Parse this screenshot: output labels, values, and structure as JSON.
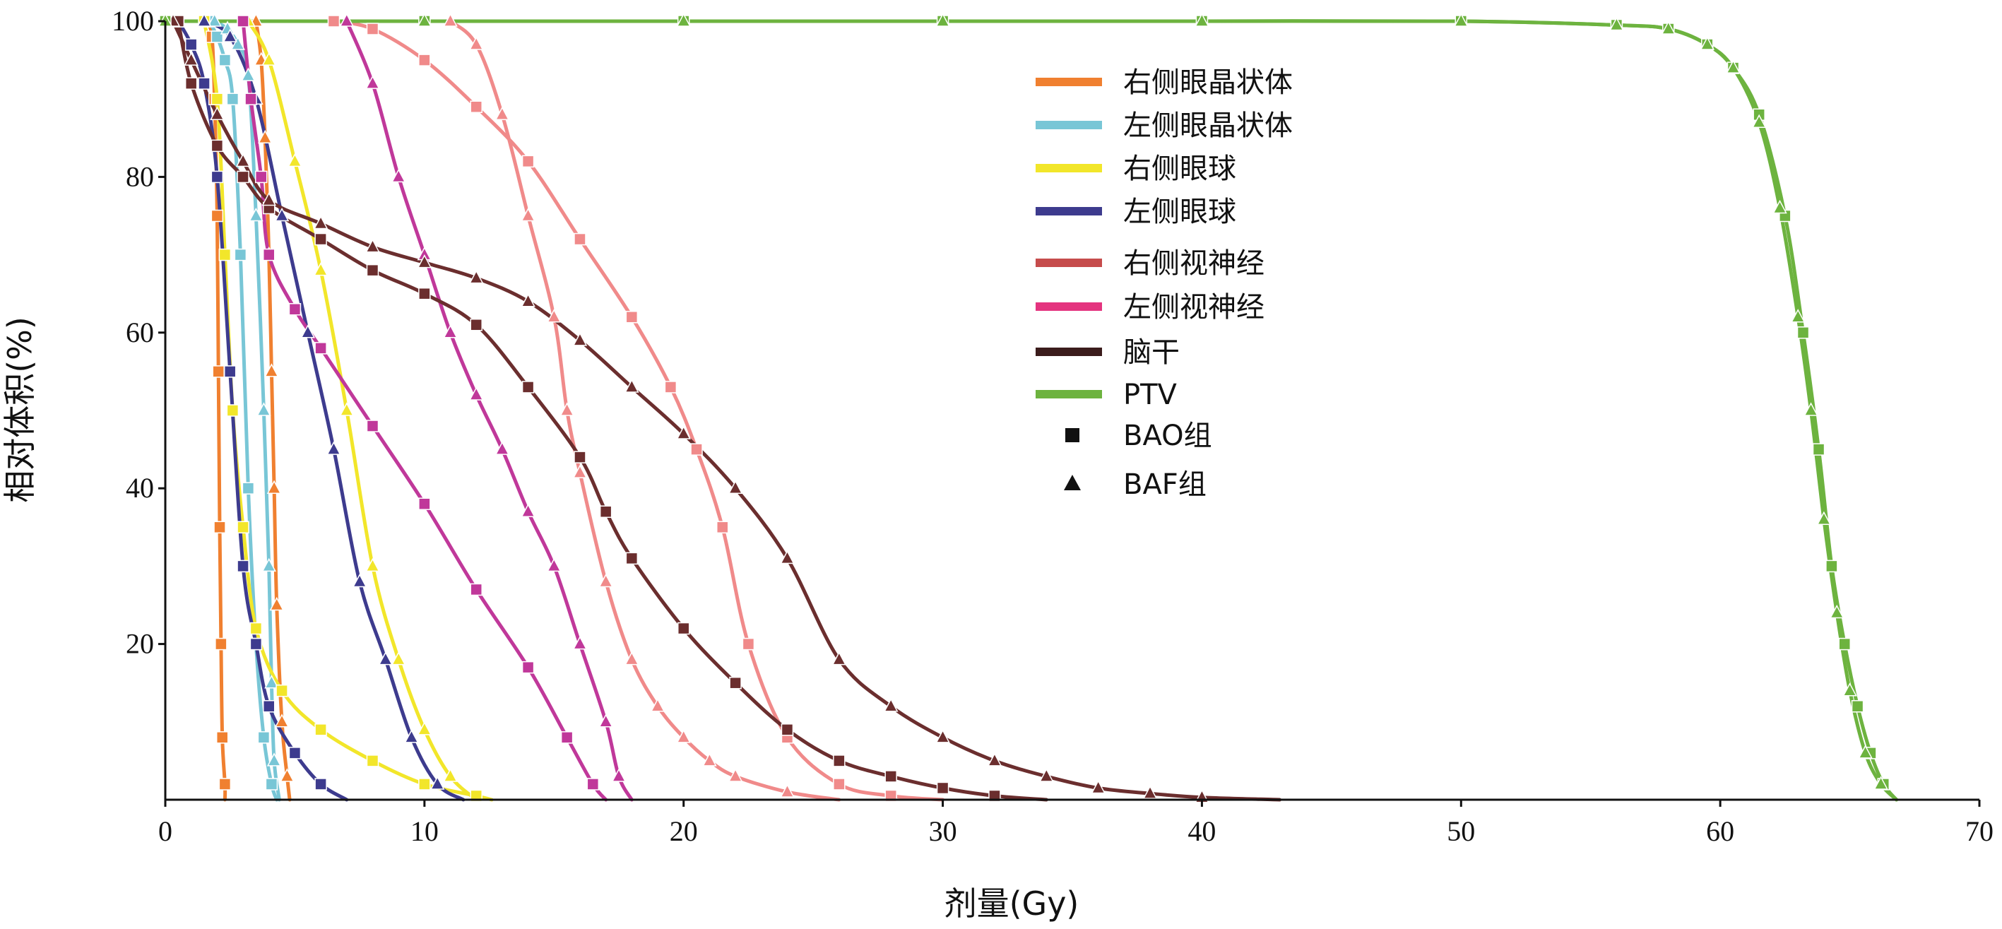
{
  "chart_data": {
    "type": "line",
    "title": "",
    "xlabel": "剂量(Gy)",
    "ylabel": "相对体积(%)",
    "xlim": [
      0,
      70
    ],
    "ylim": [
      0,
      100
    ],
    "x_ticks": [
      0,
      10,
      20,
      30,
      40,
      50,
      60,
      70
    ],
    "y_ticks": [
      20,
      40,
      60,
      80,
      100
    ],
    "grid": false,
    "legend_position": "top-right",
    "legend": [
      "右侧眼晶状体",
      "左侧眼晶状体",
      "右侧眼球",
      "左侧眼球",
      "右侧视神经",
      "左侧视神经",
      "脑干",
      "PTV",
      "BAO组",
      "BAF组"
    ],
    "marker_legend": [
      {
        "label": "BAO组",
        "marker": "square"
      },
      {
        "label": "BAF组",
        "marker": "triangle"
      }
    ],
    "series": [
      {
        "name": "右侧眼晶状体",
        "color": "#f08030",
        "group": "BAO组",
        "marker": "square",
        "x": [
          1.6,
          1.8,
          1.9,
          2.0,
          2.05,
          2.1,
          2.15,
          2.2,
          2.3,
          2.3
        ],
        "y": [
          100,
          98,
          90,
          75,
          55,
          35,
          20,
          8,
          2,
          0
        ]
      },
      {
        "name": "右侧眼晶状体",
        "color": "#f08030",
        "group": "BAF组",
        "marker": "triangle",
        "x": [
          3.5,
          3.7,
          3.85,
          4.0,
          4.1,
          4.2,
          4.3,
          4.5,
          4.7,
          4.8
        ],
        "y": [
          100,
          95,
          85,
          70,
          55,
          40,
          25,
          10,
          3,
          0
        ]
      },
      {
        "name": "左侧眼晶状体",
        "color": "#78c6d6",
        "group": "BAO组",
        "marker": "square",
        "x": [
          1.7,
          2.0,
          2.3,
          2.6,
          2.9,
          3.2,
          3.5,
          3.8,
          4.1,
          4.3
        ],
        "y": [
          100,
          98,
          95,
          90,
          70,
          40,
          20,
          8,
          2,
          0
        ]
      },
      {
        "name": "左侧眼晶状体",
        "color": "#78c6d6",
        "group": "BAF组",
        "marker": "triangle",
        "x": [
          1.9,
          2.4,
          2.8,
          3.2,
          3.5,
          3.8,
          4.0,
          4.1,
          4.2,
          4.4
        ],
        "y": [
          100,
          99,
          97,
          93,
          75,
          50,
          30,
          15,
          5,
          0
        ]
      },
      {
        "name": "右侧眼球",
        "color": "#f2e62a",
        "group": "BAO组",
        "marker": "square",
        "x": [
          1.5,
          2.0,
          2.3,
          2.6,
          3.0,
          3.5,
          4.5,
          6.0,
          8.0,
          10.0,
          12.0,
          12.6
        ],
        "y": [
          100,
          90,
          70,
          50,
          35,
          22,
          14,
          9,
          5,
          2,
          0.5,
          0
        ]
      },
      {
        "name": "右侧眼球",
        "color": "#f2e62a",
        "group": "BAF组",
        "marker": "triangle",
        "x": [
          3.2,
          4.0,
          5.0,
          6.0,
          7.0,
          8.0,
          9.0,
          10.0,
          11.0,
          12.0
        ],
        "y": [
          100,
          95,
          82,
          68,
          50,
          30,
          18,
          9,
          3,
          0
        ]
      },
      {
        "name": "左侧眼球",
        "color": "#3d3b8e",
        "group": "BAO组",
        "marker": "square",
        "x": [
          0.5,
          1.0,
          1.5,
          2.0,
          2.5,
          3.0,
          3.5,
          4.0,
          5.0,
          6.0,
          7.0
        ],
        "y": [
          100,
          97,
          92,
          80,
          55,
          30,
          20,
          12,
          6,
          2,
          0
        ]
      },
      {
        "name": "左侧眼球",
        "color": "#3d3b8e",
        "group": "BAF组",
        "marker": "triangle",
        "x": [
          1.5,
          2.5,
          3.5,
          4.5,
          5.5,
          6.5,
          7.5,
          8.5,
          9.5,
          10.5,
          11.5
        ],
        "y": [
          100,
          98,
          90,
          75,
          60,
          45,
          28,
          18,
          8,
          2,
          0
        ]
      },
      {
        "name": "右侧视神经",
        "color": "#f08a8a",
        "group": "BAO组",
        "marker": "square",
        "x": [
          6.5,
          8.0,
          10.0,
          12.0,
          14.0,
          16.0,
          18.0,
          19.5,
          20.5,
          21.5,
          22.5,
          24.0,
          26.0,
          28.0,
          30.0
        ],
        "y": [
          100,
          99,
          95,
          89,
          82,
          72,
          62,
          53,
          45,
          35,
          20,
          8,
          2,
          0.5,
          0
        ]
      },
      {
        "name": "右侧视神经",
        "color": "#f08a8a",
        "group": "BAF组",
        "marker": "triangle",
        "x": [
          11.0,
          12.0,
          13.0,
          14.0,
          15.0,
          15.5,
          16.0,
          17.0,
          18.0,
          19.0,
          20.0,
          21.0,
          22.0,
          24.0,
          26.0
        ],
        "y": [
          100,
          97,
          88,
          75,
          62,
          50,
          42,
          28,
          18,
          12,
          8,
          5,
          3,
          1,
          0
        ]
      },
      {
        "name": "左侧视神经",
        "color": "#c0389a",
        "group": "BAO组",
        "marker": "square",
        "x": [
          3.0,
          3.3,
          3.7,
          4.0,
          5.0,
          6.0,
          8.0,
          10.0,
          12.0,
          14.0,
          15.5,
          16.5,
          17.0
        ],
        "y": [
          100,
          90,
          80,
          70,
          63,
          58,
          48,
          38,
          27,
          17,
          8,
          2,
          0
        ]
      },
      {
        "name": "左侧视神经",
        "color": "#c0389a",
        "group": "BAF组",
        "marker": "triangle",
        "x": [
          7.0,
          8.0,
          9.0,
          10.0,
          11.0,
          12.0,
          13.0,
          14.0,
          15.0,
          16.0,
          17.0,
          17.5,
          18.0
        ],
        "y": [
          100,
          92,
          80,
          70,
          60,
          52,
          45,
          37,
          30,
          20,
          10,
          3,
          0
        ]
      },
      {
        "name": "脑干",
        "color": "#6b2e2e",
        "group": "BAO组",
        "marker": "square",
        "x": [
          0.5,
          1.0,
          2.0,
          3.0,
          4.0,
          6.0,
          8.0,
          10.0,
          12.0,
          14.0,
          16.0,
          17.0,
          18.0,
          20.0,
          22.0,
          24.0,
          26.0,
          28.0,
          30.0,
          32.0,
          34.0
        ],
        "y": [
          100,
          92,
          84,
          80,
          76,
          72,
          68,
          65,
          61,
          53,
          44,
          37,
          31,
          22,
          15,
          9,
          5,
          3,
          1.5,
          0.5,
          0
        ]
      },
      {
        "name": "脑干",
        "color": "#6b2e2e",
        "group": "BAF组",
        "marker": "triangle",
        "x": [
          0.3,
          1.0,
          2.0,
          3.0,
          4.0,
          6.0,
          8.0,
          10.0,
          12.0,
          14.0,
          16.0,
          18.0,
          20.0,
          22.0,
          24.0,
          26.0,
          28.0,
          30.0,
          32.0,
          34.0,
          36.0,
          38.0,
          40.0,
          43.0
        ],
        "y": [
          100,
          95,
          88,
          82,
          77,
          74,
          71,
          69,
          67,
          64,
          59,
          53,
          47,
          40,
          31,
          18,
          12,
          8,
          5,
          3,
          1.5,
          0.8,
          0.3,
          0
        ]
      },
      {
        "name": "PTV",
        "color": "#6db33f",
        "group": "BAO组",
        "marker": "square",
        "x": [
          0,
          10,
          20,
          30,
          40,
          50,
          56,
          58,
          59.5,
          60.5,
          61.5,
          62.5,
          63.2,
          63.8,
          64.3,
          64.8,
          65.3,
          65.8,
          66.3,
          66.8
        ],
        "y": [
          100,
          100,
          100,
          100,
          100,
          100,
          99.5,
          99,
          97,
          94,
          88,
          75,
          60,
          45,
          30,
          20,
          12,
          6,
          2,
          0
        ]
      },
      {
        "name": "PTV",
        "color": "#6db33f",
        "group": "BAF组",
        "marker": "triangle",
        "x": [
          0,
          10,
          20,
          30,
          40,
          50,
          56,
          58,
          59.5,
          60.5,
          61.5,
          62.3,
          63.0,
          63.5,
          64.0,
          64.5,
          65.0,
          65.6,
          66.2,
          66.8
        ],
        "y": [
          100,
          100,
          100,
          100,
          100,
          100,
          99.5,
          99,
          97,
          94,
          87,
          76,
          62,
          50,
          36,
          24,
          14,
          6,
          2,
          0
        ]
      }
    ]
  }
}
